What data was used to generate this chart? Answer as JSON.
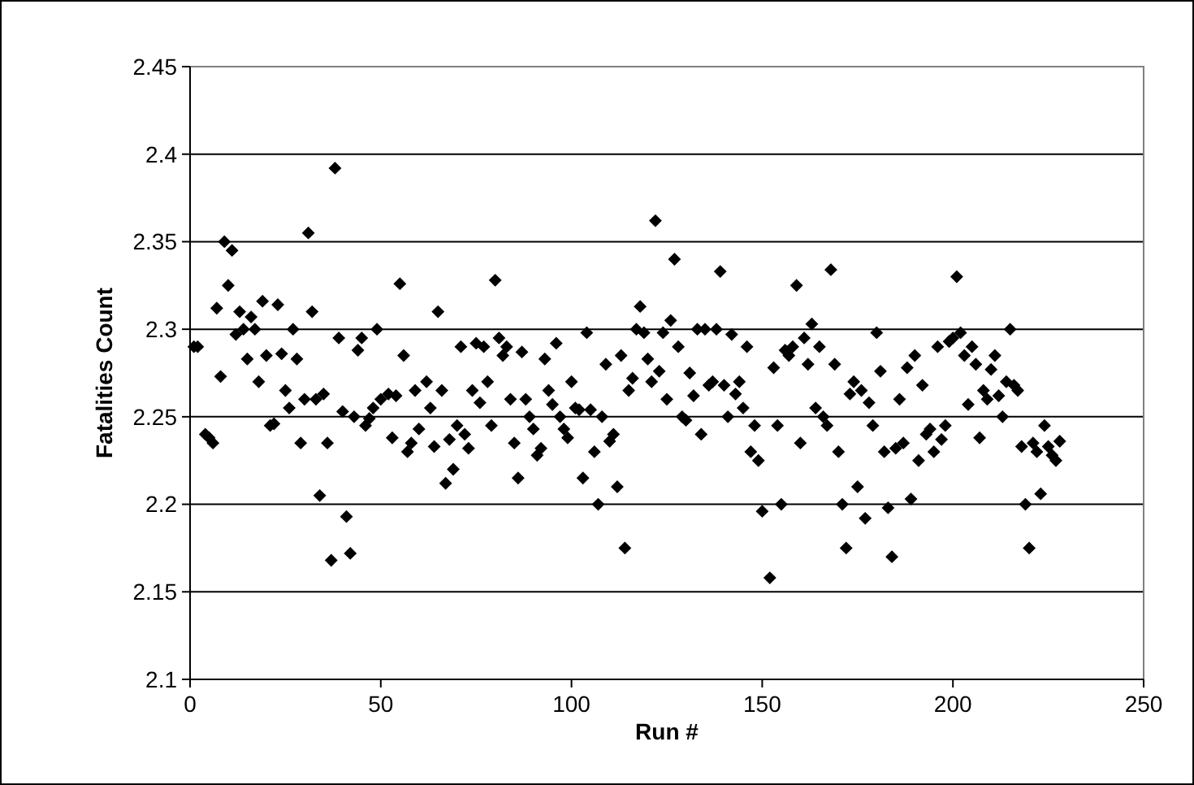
{
  "chart_data": {
    "type": "scatter",
    "xlabel": "Run #",
    "ylabel": "Fatalities Count",
    "marker": "diamond",
    "grid": "y",
    "xlim": [
      0,
      250
    ],
    "xticks": [
      0,
      50,
      100,
      150,
      200,
      250
    ],
    "ylim": [
      2.1,
      2.45
    ],
    "yticks": [
      2.1,
      2.15,
      2.2,
      2.25,
      2.3,
      2.35,
      2.4,
      2.45
    ],
    "series": [
      {
        "color": "#000000",
        "x": [
          1,
          2,
          4,
          5,
          6,
          7,
          8,
          9,
          10,
          11,
          12,
          13,
          14,
          15,
          16,
          17,
          18,
          19,
          20,
          21,
          22,
          23,
          24,
          25,
          26,
          27,
          28,
          29,
          30,
          31,
          32,
          33,
          34,
          35,
          36,
          37,
          38,
          39,
          40,
          41,
          42,
          43,
          44,
          45,
          46,
          47,
          48,
          49,
          50,
          52,
          53,
          54,
          55,
          56,
          57,
          58,
          59,
          60,
          62,
          63,
          64,
          65,
          66,
          67,
          68,
          69,
          70,
          71,
          72,
          73,
          74,
          75,
          76,
          77,
          78,
          79,
          80,
          81,
          82,
          83,
          84,
          85,
          86,
          87,
          88,
          89,
          90,
          91,
          92,
          93,
          94,
          95,
          96,
          97,
          98,
          99,
          100,
          101,
          102,
          103,
          104,
          105,
          106,
          107,
          108,
          109,
          110,
          111,
          112,
          113,
          114,
          115,
          116,
          117,
          118,
          119,
          120,
          121,
          122,
          123,
          124,
          125,
          126,
          127,
          128,
          129,
          130,
          131,
          132,
          133,
          134,
          135,
          136,
          137,
          138,
          139,
          140,
          141,
          142,
          143,
          144,
          145,
          146,
          147,
          148,
          149,
          150,
          152,
          153,
          154,
          155,
          156,
          157,
          158,
          159,
          160,
          161,
          162,
          163,
          164,
          165,
          166,
          167,
          168,
          169,
          170,
          171,
          172,
          173,
          174,
          175,
          176,
          177,
          178,
          179,
          180,
          181,
          182,
          183,
          184,
          185,
          186,
          187,
          188,
          189,
          190,
          191,
          192,
          193,
          194,
          195,
          196,
          197,
          198,
          199,
          200,
          201,
          202,
          203,
          204,
          205,
          206,
          207,
          208,
          209,
          210,
          211,
          212,
          213,
          214,
          215,
          216,
          217,
          218,
          219,
          220,
          221,
          222,
          223,
          224,
          225,
          226,
          227,
          228
        ],
        "values": [
          2.29,
          2.29,
          2.24,
          2.238,
          2.235,
          2.312,
          2.273,
          2.35,
          2.325,
          2.345,
          2.297,
          2.31,
          2.3,
          2.283,
          2.307,
          2.3,
          2.27,
          2.316,
          2.285,
          2.245,
          2.246,
          2.314,
          2.286,
          2.265,
          2.255,
          2.3,
          2.283,
          2.235,
          2.26,
          2.355,
          2.31,
          2.26,
          2.205,
          2.263,
          2.235,
          2.168,
          2.392,
          2.295,
          2.253,
          2.193,
          2.172,
          2.25,
          2.288,
          2.295,
          2.245,
          2.249,
          2.255,
          2.3,
          2.26,
          2.263,
          2.238,
          2.262,
          2.326,
          2.285,
          2.23,
          2.235,
          2.265,
          2.243,
          2.27,
          2.255,
          2.233,
          2.31,
          2.265,
          2.212,
          2.237,
          2.22,
          2.245,
          2.29,
          2.24,
          2.232,
          2.265,
          2.292,
          2.258,
          2.29,
          2.27,
          2.245,
          2.328,
          2.295,
          2.285,
          2.29,
          2.26,
          2.235,
          2.215,
          2.287,
          2.26,
          2.25,
          2.243,
          2.228,
          2.232,
          2.283,
          2.265,
          2.257,
          2.292,
          2.25,
          2.243,
          2.238,
          2.27,
          2.255,
          2.254,
          2.215,
          2.298,
          2.254,
          2.23,
          2.2,
          2.25,
          2.28,
          2.236,
          2.24,
          2.21,
          2.285,
          2.175,
          2.265,
          2.272,
          2.3,
          2.313,
          2.298,
          2.283,
          2.27,
          2.362,
          2.276,
          2.298,
          2.26,
          2.305,
          2.34,
          2.29,
          2.25,
          2.248,
          2.275,
          2.262,
          2.3,
          2.24,
          2.3,
          2.268,
          2.27,
          2.3,
          2.333,
          2.268,
          2.25,
          2.297,
          2.263,
          2.27,
          2.255,
          2.29,
          2.23,
          2.245,
          2.225,
          2.196,
          2.158,
          2.278,
          2.245,
          2.2,
          2.288,
          2.285,
          2.29,
          2.325,
          2.235,
          2.295,
          2.28,
          2.303,
          2.255,
          2.29,
          2.25,
          2.245,
          2.334,
          2.28,
          2.23,
          2.2,
          2.175,
          2.263,
          2.27,
          2.21,
          2.265,
          2.192,
          2.258,
          2.245,
          2.298,
          2.276,
          2.23,
          2.198,
          2.17,
          2.232,
          2.26,
          2.235,
          2.278,
          2.203,
          2.285,
          2.225,
          2.268,
          2.24,
          2.243,
          2.23,
          2.29,
          2.237,
          2.245,
          2.293,
          2.295,
          2.33,
          2.298,
          2.285,
          2.257,
          2.29,
          2.28,
          2.238,
          2.265,
          2.26,
          2.277,
          2.285,
          2.262,
          2.25,
          2.27,
          2.3,
          2.268,
          2.265,
          2.233,
          2.2,
          2.175,
          2.235,
          2.23,
          2.206,
          2.245,
          2.233,
          2.228,
          2.225,
          2.236
        ]
      }
    ]
  }
}
